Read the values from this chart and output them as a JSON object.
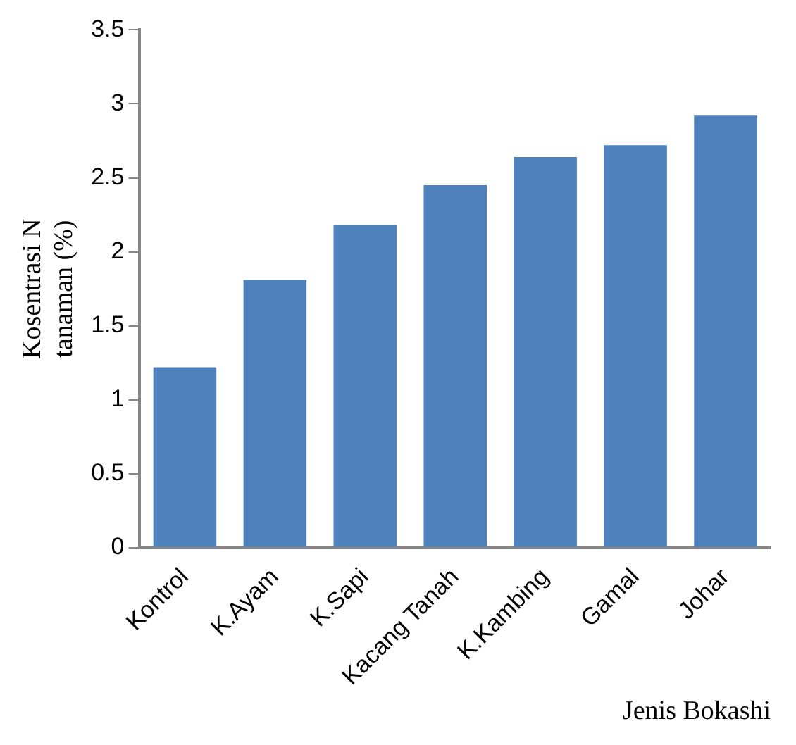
{
  "chart_data": {
    "type": "bar",
    "xlabel": "Jenis Bokashi",
    "ylabel": "Kosentrasi N tanaman (%)",
    "categories": [
      "Kontrol",
      "K.Ayam",
      "K.Sapi",
      "Kacang Tanah",
      "K.Kambing",
      "Gamal",
      "Johar"
    ],
    "values": [
      1.22,
      1.81,
      2.18,
      2.45,
      2.64,
      2.72,
      2.92
    ],
    "color": "#4f81bd",
    "ylim": [
      0,
      3.5
    ],
    "yticks": [
      0,
      0.5,
      1,
      1.5,
      2,
      2.5,
      3,
      3.5
    ],
    "grid": false,
    "legend": false
  }
}
